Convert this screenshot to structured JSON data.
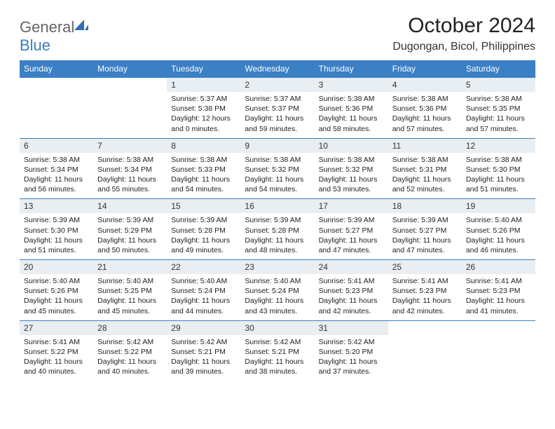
{
  "branding": {
    "text_general": "General",
    "text_blue": "Blue",
    "logo_color": "#2e6fb5"
  },
  "header": {
    "month_title": "October 2024",
    "location": "Dugongan, Bicol, Philippines"
  },
  "colors": {
    "header_bg": "#3b7fc4",
    "header_text": "#ffffff",
    "daynum_bg": "#e9eef2",
    "divider": "#3b7fc4"
  },
  "day_headers": [
    "Sunday",
    "Monday",
    "Tuesday",
    "Wednesday",
    "Thursday",
    "Friday",
    "Saturday"
  ],
  "weeks": [
    [
      {
        "n": "",
        "sr": "",
        "ss": "",
        "dl": ""
      },
      {
        "n": "",
        "sr": "",
        "ss": "",
        "dl": ""
      },
      {
        "n": "1",
        "sr": "Sunrise: 5:37 AM",
        "ss": "Sunset: 5:38 PM",
        "dl": "Daylight: 12 hours and 0 minutes."
      },
      {
        "n": "2",
        "sr": "Sunrise: 5:37 AM",
        "ss": "Sunset: 5:37 PM",
        "dl": "Daylight: 11 hours and 59 minutes."
      },
      {
        "n": "3",
        "sr": "Sunrise: 5:38 AM",
        "ss": "Sunset: 5:36 PM",
        "dl": "Daylight: 11 hours and 58 minutes."
      },
      {
        "n": "4",
        "sr": "Sunrise: 5:38 AM",
        "ss": "Sunset: 5:36 PM",
        "dl": "Daylight: 11 hours and 57 minutes."
      },
      {
        "n": "5",
        "sr": "Sunrise: 5:38 AM",
        "ss": "Sunset: 5:35 PM",
        "dl": "Daylight: 11 hours and 57 minutes."
      }
    ],
    [
      {
        "n": "6",
        "sr": "Sunrise: 5:38 AM",
        "ss": "Sunset: 5:34 PM",
        "dl": "Daylight: 11 hours and 56 minutes."
      },
      {
        "n": "7",
        "sr": "Sunrise: 5:38 AM",
        "ss": "Sunset: 5:34 PM",
        "dl": "Daylight: 11 hours and 55 minutes."
      },
      {
        "n": "8",
        "sr": "Sunrise: 5:38 AM",
        "ss": "Sunset: 5:33 PM",
        "dl": "Daylight: 11 hours and 54 minutes."
      },
      {
        "n": "9",
        "sr": "Sunrise: 5:38 AM",
        "ss": "Sunset: 5:32 PM",
        "dl": "Daylight: 11 hours and 54 minutes."
      },
      {
        "n": "10",
        "sr": "Sunrise: 5:38 AM",
        "ss": "Sunset: 5:32 PM",
        "dl": "Daylight: 11 hours and 53 minutes."
      },
      {
        "n": "11",
        "sr": "Sunrise: 5:38 AM",
        "ss": "Sunset: 5:31 PM",
        "dl": "Daylight: 11 hours and 52 minutes."
      },
      {
        "n": "12",
        "sr": "Sunrise: 5:38 AM",
        "ss": "Sunset: 5:30 PM",
        "dl": "Daylight: 11 hours and 51 minutes."
      }
    ],
    [
      {
        "n": "13",
        "sr": "Sunrise: 5:39 AM",
        "ss": "Sunset: 5:30 PM",
        "dl": "Daylight: 11 hours and 51 minutes."
      },
      {
        "n": "14",
        "sr": "Sunrise: 5:39 AM",
        "ss": "Sunset: 5:29 PM",
        "dl": "Daylight: 11 hours and 50 minutes."
      },
      {
        "n": "15",
        "sr": "Sunrise: 5:39 AM",
        "ss": "Sunset: 5:28 PM",
        "dl": "Daylight: 11 hours and 49 minutes."
      },
      {
        "n": "16",
        "sr": "Sunrise: 5:39 AM",
        "ss": "Sunset: 5:28 PM",
        "dl": "Daylight: 11 hours and 48 minutes."
      },
      {
        "n": "17",
        "sr": "Sunrise: 5:39 AM",
        "ss": "Sunset: 5:27 PM",
        "dl": "Daylight: 11 hours and 47 minutes."
      },
      {
        "n": "18",
        "sr": "Sunrise: 5:39 AM",
        "ss": "Sunset: 5:27 PM",
        "dl": "Daylight: 11 hours and 47 minutes."
      },
      {
        "n": "19",
        "sr": "Sunrise: 5:40 AM",
        "ss": "Sunset: 5:26 PM",
        "dl": "Daylight: 11 hours and 46 minutes."
      }
    ],
    [
      {
        "n": "20",
        "sr": "Sunrise: 5:40 AM",
        "ss": "Sunset: 5:26 PM",
        "dl": "Daylight: 11 hours and 45 minutes."
      },
      {
        "n": "21",
        "sr": "Sunrise: 5:40 AM",
        "ss": "Sunset: 5:25 PM",
        "dl": "Daylight: 11 hours and 45 minutes."
      },
      {
        "n": "22",
        "sr": "Sunrise: 5:40 AM",
        "ss": "Sunset: 5:24 PM",
        "dl": "Daylight: 11 hours and 44 minutes."
      },
      {
        "n": "23",
        "sr": "Sunrise: 5:40 AM",
        "ss": "Sunset: 5:24 PM",
        "dl": "Daylight: 11 hours and 43 minutes."
      },
      {
        "n": "24",
        "sr": "Sunrise: 5:41 AM",
        "ss": "Sunset: 5:23 PM",
        "dl": "Daylight: 11 hours and 42 minutes."
      },
      {
        "n": "25",
        "sr": "Sunrise: 5:41 AM",
        "ss": "Sunset: 5:23 PM",
        "dl": "Daylight: 11 hours and 42 minutes."
      },
      {
        "n": "26",
        "sr": "Sunrise: 5:41 AM",
        "ss": "Sunset: 5:23 PM",
        "dl": "Daylight: 11 hours and 41 minutes."
      }
    ],
    [
      {
        "n": "27",
        "sr": "Sunrise: 5:41 AM",
        "ss": "Sunset: 5:22 PM",
        "dl": "Daylight: 11 hours and 40 minutes."
      },
      {
        "n": "28",
        "sr": "Sunrise: 5:42 AM",
        "ss": "Sunset: 5:22 PM",
        "dl": "Daylight: 11 hours and 40 minutes."
      },
      {
        "n": "29",
        "sr": "Sunrise: 5:42 AM",
        "ss": "Sunset: 5:21 PM",
        "dl": "Daylight: 11 hours and 39 minutes."
      },
      {
        "n": "30",
        "sr": "Sunrise: 5:42 AM",
        "ss": "Sunset: 5:21 PM",
        "dl": "Daylight: 11 hours and 38 minutes."
      },
      {
        "n": "31",
        "sr": "Sunrise: 5:42 AM",
        "ss": "Sunset: 5:20 PM",
        "dl": "Daylight: 11 hours and 37 minutes."
      },
      {
        "n": "",
        "sr": "",
        "ss": "",
        "dl": ""
      },
      {
        "n": "",
        "sr": "",
        "ss": "",
        "dl": ""
      }
    ]
  ]
}
